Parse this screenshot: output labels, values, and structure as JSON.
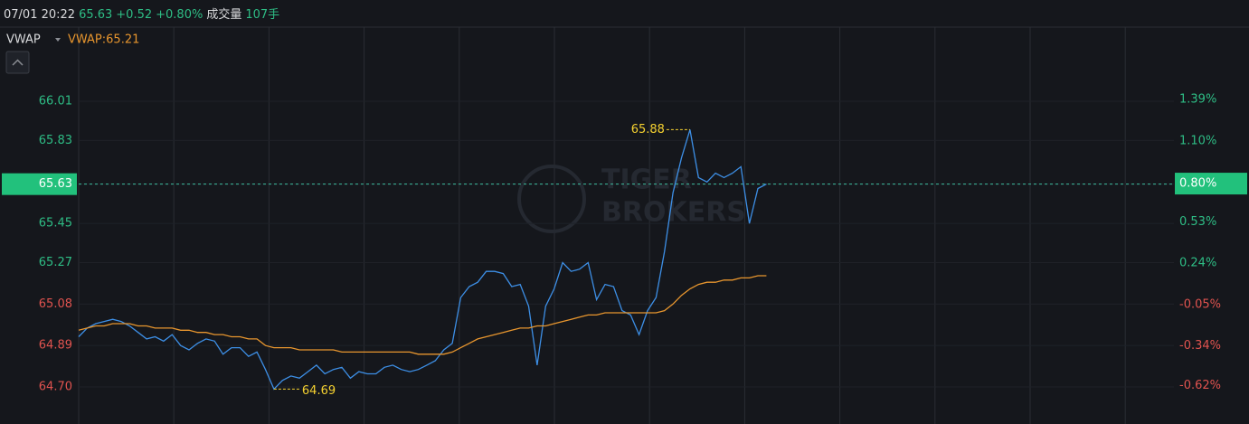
{
  "header": {
    "time": "07/01 20:22",
    "price": 65.63,
    "change": "+0.52",
    "change_pct": "+0.80%",
    "volume_label": "成交量",
    "volume": "107手"
  },
  "chart_data": {
    "type": "line",
    "watermark": [
      "TIGER",
      "BROKERS"
    ],
    "xlim": [
      0,
      129
    ],
    "ylim": [
      64.53,
      66.35
    ],
    "yticks": [
      66.01,
      65.83,
      65.63,
      65.45,
      65.27,
      65.08,
      64.89,
      {
        "value": 64.7,
        "label": "64.70"
      }
    ],
    "y2lim": [
      -0.89,
      1.9
    ],
    "y2ticks": [
      {
        "value": 1.39,
        "label": "1.39%"
      },
      {
        "value": 1.1,
        "label": "1.10%"
      },
      {
        "value": 0.8,
        "label": "0.80%"
      },
      {
        "value": 0.53,
        "label": "0.53%"
      },
      {
        "value": 0.24,
        "label": "0.24%"
      },
      {
        "value": -0.05,
        "label": "-0.05%"
      },
      {
        "value": -0.34,
        "label": "-0.34%"
      },
      {
        "value": -0.62,
        "label": "-0.62%"
      }
    ],
    "grid": true,
    "up_color": "#2ebd85",
    "down_color": "#e0534f",
    "annotations": {
      "high": 65.88,
      "low": 64.69
    },
    "series": [
      {
        "color": "#3d8fe6",
        "values": [
          64.93,
          64.97,
          64.99,
          65.0,
          65.01,
          65.0,
          64.98,
          64.95,
          64.92,
          64.93,
          64.91,
          64.94,
          64.89,
          64.87,
          64.9,
          64.92,
          64.91,
          64.85,
          64.88,
          64.88,
          64.84,
          64.86,
          64.78,
          64.69,
          64.73,
          64.75,
          64.74,
          64.77,
          64.8,
          64.76,
          64.78,
          64.79,
          64.74,
          64.77,
          64.76,
          64.76,
          64.79,
          64.8,
          64.78,
          64.77,
          64.78,
          64.8,
          64.82,
          64.87,
          64.9,
          65.11,
          65.16,
          65.18,
          65.23,
          65.23,
          65.22,
          65.16,
          65.17,
          65.07,
          64.8,
          65.07,
          65.15,
          65.27,
          65.23,
          65.24,
          65.27,
          65.1,
          65.17,
          65.16,
          65.05,
          65.03,
          64.94,
          65.05,
          65.11,
          65.32,
          65.59,
          65.75,
          65.88,
          65.66,
          65.64,
          65.68,
          65.66,
          65.68,
          65.71,
          65.45,
          65.61,
          65.63
        ]
      },
      {
        "name": "VWAP",
        "legend": "VWAP:65.21",
        "color": "#e8962e",
        "values": [
          64.96,
          64.97,
          64.98,
          64.98,
          64.99,
          64.99,
          64.99,
          64.98,
          64.98,
          64.97,
          64.97,
          64.97,
          64.96,
          64.96,
          64.95,
          64.95,
          64.94,
          64.94,
          64.93,
          64.93,
          64.92,
          64.92,
          64.89,
          64.88,
          64.88,
          64.88,
          64.87,
          64.87,
          64.87,
          64.87,
          64.87,
          64.86,
          64.86,
          64.86,
          64.86,
          64.86,
          64.86,
          64.86,
          64.86,
          64.86,
          64.85,
          64.85,
          64.85,
          64.85,
          64.86,
          64.88,
          64.9,
          64.92,
          64.93,
          64.94,
          64.95,
          64.96,
          64.97,
          64.97,
          64.98,
          64.98,
          64.99,
          65.0,
          65.01,
          65.02,
          65.03,
          65.03,
          65.04,
          65.04,
          65.04,
          65.04,
          65.04,
          65.04,
          65.04,
          65.05,
          65.08,
          65.12,
          65.15,
          65.17,
          65.18,
          65.18,
          65.19,
          65.19,
          65.2,
          65.2,
          65.21,
          65.21
        ]
      }
    ]
  }
}
